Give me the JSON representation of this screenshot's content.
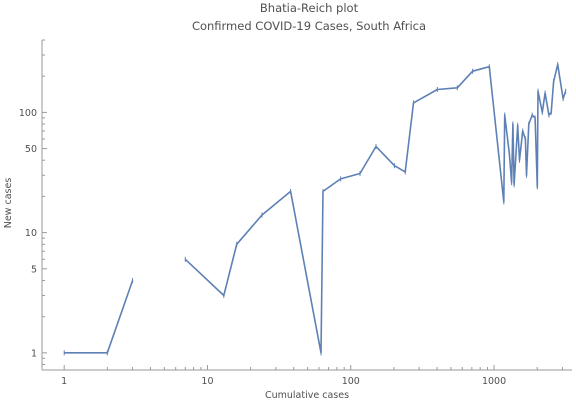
{
  "chart_data": {
    "type": "line",
    "title": "Bhatia-Reich plot",
    "subtitle": "Confirmed COVID-19 Cases, South Africa",
    "xlabel": "Cumulative cases",
    "ylabel": "New cases",
    "xscale": "log",
    "yscale": "log",
    "xlim": [
      0.7,
      3500
    ],
    "ylim": [
      0.72,
      400
    ],
    "grid": false,
    "x_ticks": [
      {
        "value": 1,
        "label": "1"
      },
      {
        "value": 10,
        "label": "10"
      },
      {
        "value": 100,
        "label": "100"
      },
      {
        "value": 1000,
        "label": "1000"
      }
    ],
    "y_ticks": [
      {
        "value": 1,
        "label": "1"
      },
      {
        "value": 5,
        "label": "5"
      },
      {
        "value": 10,
        "label": "10"
      },
      {
        "value": 50,
        "label": "50"
      },
      {
        "value": 100,
        "label": "100"
      }
    ],
    "color": "#5e81b5",
    "segments": [
      [
        [
          1,
          1
        ],
        [
          2,
          1
        ],
        [
          3,
          4
        ]
      ],
      [
        [
          7,
          6
        ],
        [
          13,
          3
        ],
        [
          16,
          8
        ],
        [
          24,
          14
        ],
        [
          38,
          22
        ],
        [
          62,
          1
        ],
        [
          64,
          22
        ],
        [
          85,
          28
        ],
        [
          116,
          31
        ],
        [
          150,
          52
        ],
        [
          202,
          36
        ],
        [
          240,
          32
        ],
        [
          274,
          120
        ],
        [
          402,
          155
        ],
        [
          554,
          160
        ],
        [
          709,
          220
        ],
        [
          927,
          240
        ],
        [
          1170,
          18
        ],
        [
          1187,
          95
        ],
        [
          1280,
          45
        ],
        [
          1326,
          26
        ],
        [
          1353,
          80
        ],
        [
          1380,
          25
        ],
        [
          1462,
          78
        ],
        [
          1505,
          40
        ],
        [
          1585,
          70
        ],
        [
          1655,
          60
        ],
        [
          1686,
          30
        ],
        [
          1749,
          80
        ],
        [
          1845,
          95
        ],
        [
          1934,
          90
        ],
        [
          2003,
          24
        ],
        [
          2028,
          150
        ],
        [
          2173,
          100
        ],
        [
          2272,
          145
        ],
        [
          2415,
          95
        ],
        [
          2506,
          100
        ],
        [
          2605,
          180
        ],
        [
          2783,
          250
        ],
        [
          3034,
          130
        ],
        [
          3158,
          150
        ]
      ]
    ]
  }
}
